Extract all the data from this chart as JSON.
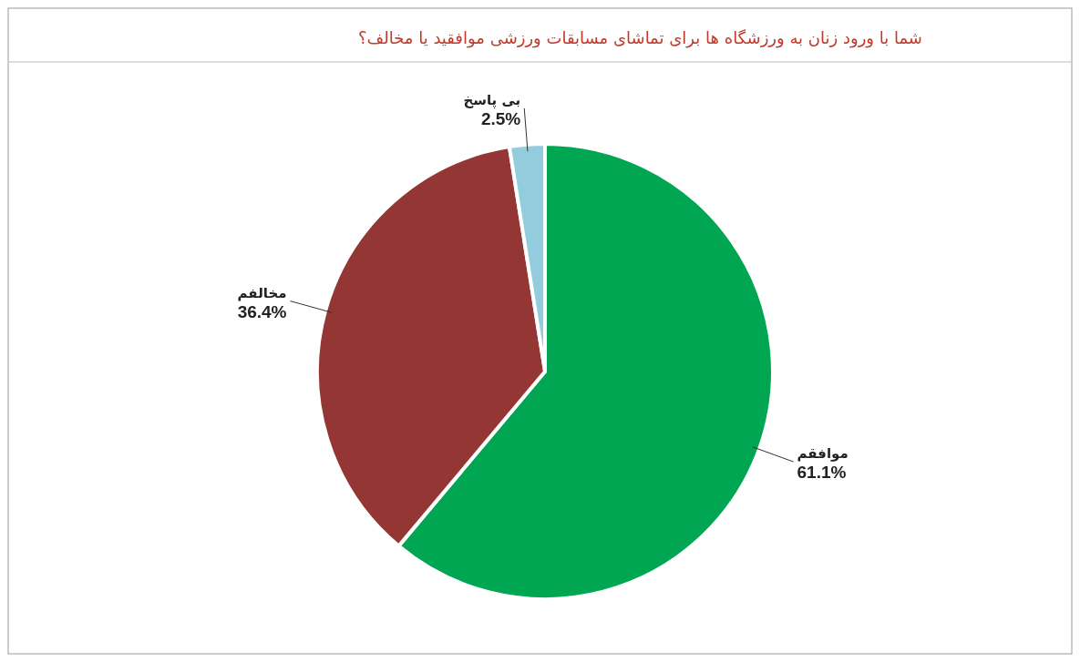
{
  "chart_data": {
    "type": "pie",
    "title": "شما با ورود زنان به ورزشگاه ها برای تماشای مسابقات ورزشی موافقید یا مخالف؟",
    "categories": [
      "موافقم",
      "مخالفم",
      "بی پاسخ"
    ],
    "values": [
      61.1,
      36.4,
      2.5
    ],
    "value_labels": [
      "61.1%",
      "36.4%",
      "2.5%"
    ],
    "colors": [
      "#00a651",
      "#943634",
      "#93cddd"
    ]
  }
}
